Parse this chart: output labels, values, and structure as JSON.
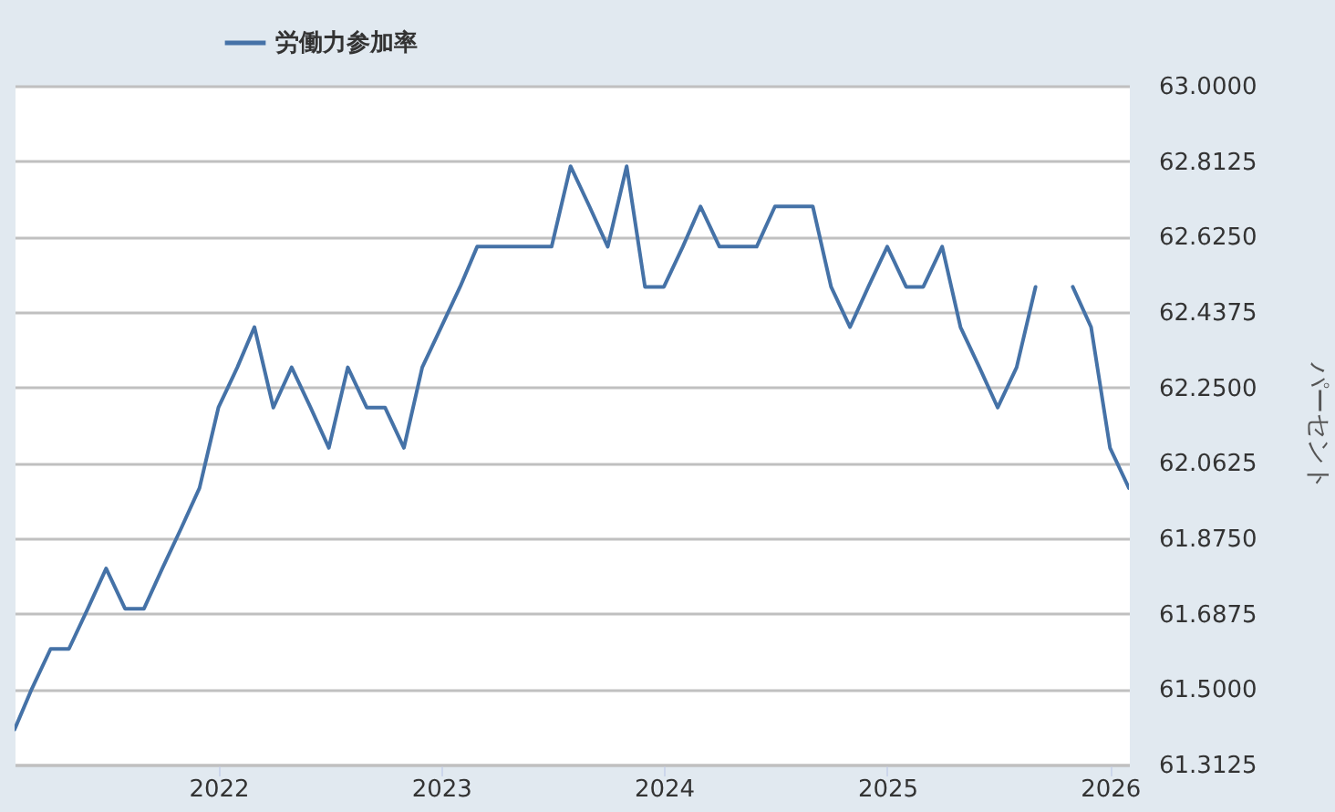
{
  "chart_data": {
    "type": "line",
    "ylabel": "パーセント",
    "x": [
      "2021-02",
      "2021-03",
      "2021-04",
      "2021-05",
      "2021-06",
      "2021-07",
      "2021-08",
      "2021-09",
      "2021-10",
      "2021-11",
      "2021-12",
      "2022-01",
      "2022-02",
      "2022-03",
      "2022-04",
      "2022-05",
      "2022-06",
      "2022-07",
      "2022-08",
      "2022-09",
      "2022-10",
      "2022-11",
      "2022-12",
      "2023-01",
      "2023-02",
      "2023-03",
      "2023-04",
      "2023-05",
      "2023-06",
      "2023-07",
      "2023-08",
      "2023-09",
      "2023-10",
      "2023-11",
      "2023-12",
      "2024-01",
      "2024-02",
      "2024-03",
      "2024-04",
      "2024-05",
      "2024-06",
      "2024-07",
      "2024-08",
      "2024-09",
      "2024-10",
      "2024-11",
      "2024-12",
      "2025-01",
      "2025-02",
      "2025-03",
      "2025-04",
      "2025-05",
      "2025-06",
      "2025-07",
      "2025-08",
      "2025-09",
      "2025-10",
      "2025-11",
      "2025-12",
      "2026-01",
      "2026-02"
    ],
    "series": [
      {
        "name": "労働力参加率",
        "color": "#4572a7",
        "values": [
          61.4,
          61.5,
          61.6,
          61.6,
          61.7,
          61.8,
          61.7,
          61.7,
          61.8,
          61.9,
          62.0,
          62.2,
          62.3,
          62.4,
          62.2,
          62.3,
          62.2,
          62.1,
          62.3,
          62.2,
          62.2,
          62.1,
          62.3,
          62.4,
          62.5,
          62.6,
          62.6,
          62.6,
          62.6,
          62.6,
          62.8,
          62.7,
          62.6,
          62.8,
          62.5,
          62.5,
          62.6,
          62.7,
          62.6,
          62.6,
          62.6,
          62.7,
          62.7,
          62.7,
          62.5,
          62.4,
          62.5,
          62.6,
          62.5,
          62.5,
          62.6,
          62.4,
          62.3,
          62.2,
          62.3,
          62.5,
          null,
          62.5,
          62.4,
          62.1,
          62.0
        ]
      }
    ],
    "xlim": [
      "2021-02",
      "2026-02"
    ],
    "xticks": [
      {
        "value": "2022-01-01",
        "label": "2022"
      },
      {
        "value": "2023-01-01",
        "label": "2023"
      },
      {
        "value": "2024-01-01",
        "label": "2024"
      },
      {
        "value": "2025-01-01",
        "label": "2025"
      },
      {
        "value": "2026-01-01",
        "label": "2026"
      }
    ],
    "ylim": [
      61.3125,
      63
    ],
    "yticks": [
      {
        "value": 61.3125,
        "label": "61.3125"
      },
      {
        "value": 61.5,
        "label": "61.5000"
      },
      {
        "value": 61.6875,
        "label": "61.6875"
      },
      {
        "value": 61.875,
        "label": "61.8750"
      },
      {
        "value": 62.0625,
        "label": "62.0625"
      },
      {
        "value": 62.25,
        "label": "62.2500"
      },
      {
        "value": 62.4375,
        "label": "62.4375"
      },
      {
        "value": 62.625,
        "label": "62.6250"
      },
      {
        "value": 62.8125,
        "label": "62.8125"
      },
      {
        "value": 63,
        "label": "63.0000"
      }
    ],
    "grid": "y",
    "legend": "top left",
    "line_style": "solid"
  }
}
